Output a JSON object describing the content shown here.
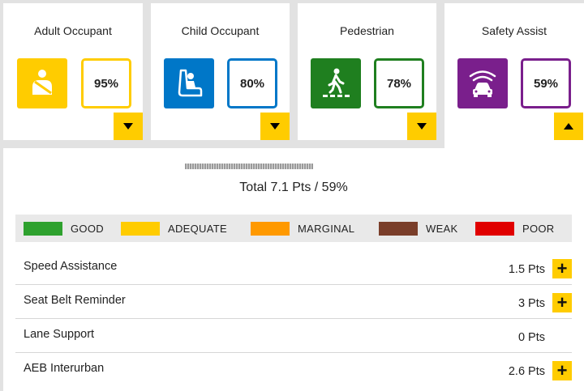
{
  "categories": [
    {
      "title": "Adult Occupant",
      "score": "95%",
      "icon": "seatbelt-occupant-icon",
      "color": "#ffcc00"
    },
    {
      "title": "Child Occupant",
      "score": "80%",
      "icon": "child-seat-icon",
      "color": "#0077c8"
    },
    {
      "title": "Pedestrian",
      "score": "78%",
      "icon": "pedestrian-icon",
      "color": "#1f7f1f"
    },
    {
      "title": "Safety Assist",
      "score": "59%",
      "icon": "car-sensor-icon",
      "color": "#7a1f8c"
    }
  ],
  "total": "Total 7.1 Pts / 59%",
  "legend": [
    {
      "label": "GOOD",
      "color": "#2ea12e"
    },
    {
      "label": "ADEQUATE",
      "color": "#ffcc00"
    },
    {
      "label": "MARGINAL",
      "color": "#ff9900"
    },
    {
      "label": "WEAK",
      "color": "#7a3e2a"
    },
    {
      "label": "POOR",
      "color": "#e00000"
    }
  ],
  "rows": [
    {
      "name": "Speed Assistance",
      "pts": "1.5 Pts",
      "expandable": true
    },
    {
      "name": "Seat Belt Reminder",
      "pts": "3 Pts",
      "expandable": true
    },
    {
      "name": "Lane Support",
      "pts": "0 Pts",
      "expandable": false
    },
    {
      "name": "AEB Interurban",
      "pts": "2.6 Pts",
      "expandable": true
    }
  ]
}
